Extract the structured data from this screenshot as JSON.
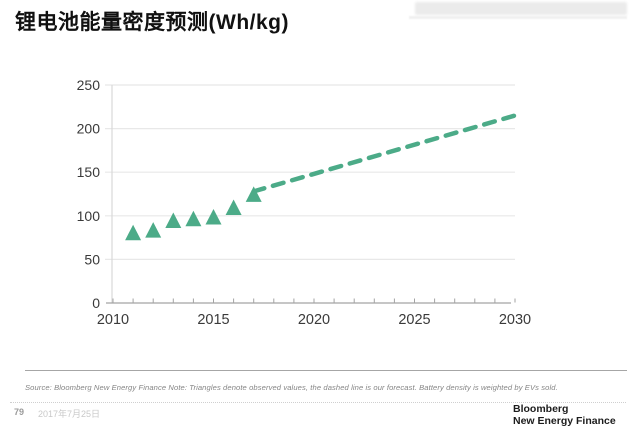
{
  "title": "锂电池能量密度预测(Wh/kg)",
  "colors": {
    "accent_green": "#4cab88",
    "grid": "#e8e8e8",
    "axis_line": "#a3a3a3",
    "y_axis_line": "#d9d9d9",
    "tick_text": "#3a3a3a"
  },
  "chart_data": {
    "type": "scatter",
    "title": "锂电池能量密度预测(Wh/kg)",
    "xlabel": "",
    "ylabel": "",
    "xlim": [
      2010,
      2030
    ],
    "ylim": [
      0,
      250
    ],
    "x_ticks": [
      2010,
      2015,
      2020,
      2025,
      2030
    ],
    "y_ticks": [
      0,
      50,
      100,
      150,
      200,
      250
    ],
    "grid": true,
    "legend": "none",
    "series": [
      {
        "name": "observed",
        "marker": "triangle",
        "color": "#4cab88",
        "points": [
          [
            2011,
            80
          ],
          [
            2012,
            83
          ],
          [
            2013,
            94
          ],
          [
            2014,
            96
          ],
          [
            2015,
            98
          ],
          [
            2016,
            109
          ],
          [
            2017,
            124
          ]
        ]
      },
      {
        "name": "forecast",
        "style": "dashed-line",
        "color": "#4cab88",
        "points": [
          [
            2017,
            128
          ],
          [
            2030,
            215
          ]
        ]
      }
    ]
  },
  "source_note": "Source: Bloomberg New Energy Finance Note: Triangles denote observed values, the dashed line is our forecast. Battery density is weighted by EVs sold.",
  "footer": {
    "page_number": "79",
    "date": "2017年7月25日",
    "brand_line1": "Bloomberg",
    "brand_line2": "New Energy Finance"
  }
}
